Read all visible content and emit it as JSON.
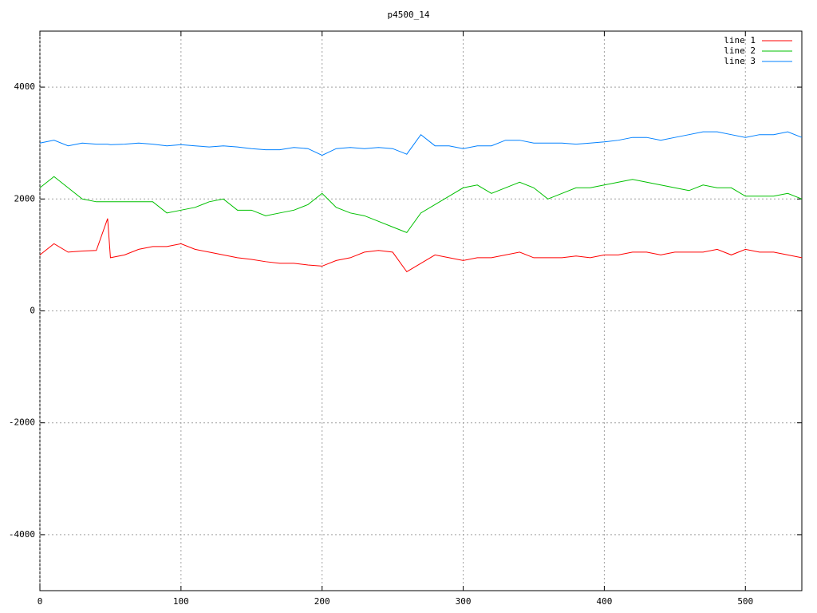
{
  "chart_data": {
    "type": "line",
    "title": "p4500_14",
    "x": [
      0,
      10,
      20,
      30,
      40,
      48,
      50,
      60,
      70,
      80,
      90,
      100,
      110,
      120,
      130,
      140,
      150,
      160,
      170,
      180,
      190,
      200,
      210,
      220,
      230,
      240,
      250,
      260,
      270,
      280,
      290,
      300,
      310,
      320,
      330,
      340,
      350,
      360,
      370,
      380,
      390,
      400,
      410,
      420,
      430,
      440,
      450,
      460,
      470,
      480,
      490,
      500,
      510,
      520,
      530,
      540
    ],
    "series": [
      {
        "name": "line 1",
        "color": "#ff0000",
        "values": [
          1000,
          1200,
          1050,
          1070,
          1080,
          1650,
          950,
          1000,
          1100,
          1150,
          1150,
          1200,
          1100,
          1050,
          1000,
          950,
          920,
          880,
          850,
          850,
          820,
          800,
          900,
          950,
          1050,
          1080,
          1050,
          700,
          850,
          1000,
          950,
          900,
          950,
          950,
          1000,
          1050,
          950,
          950,
          950,
          980,
          950,
          1000,
          1000,
          1050,
          1050,
          1000,
          1050,
          1050,
          1050,
          1100,
          1000,
          1100,
          1050,
          1050,
          1000,
          950
        ]
      },
      {
        "name": "line 2",
        "color": "#00c000",
        "values": [
          2200,
          2400,
          2200,
          2000,
          1950,
          1950,
          1950,
          1950,
          1950,
          1950,
          1750,
          1800,
          1850,
          1950,
          2000,
          1800,
          1800,
          1700,
          1750,
          1800,
          1900,
          2100,
          1850,
          1750,
          1700,
          1600,
          1500,
          1400,
          1750,
          1900,
          2050,
          2200,
          2250,
          2100,
          2200,
          2300,
          2200,
          2000,
          2100,
          2200,
          2200,
          2250,
          2300,
          2350,
          2300,
          2250,
          2200,
          2150,
          2250,
          2200,
          2200,
          2050,
          2050,
          2050,
          2100,
          2000
        ]
      },
      {
        "name": "line 3",
        "color": "#0080ff",
        "values": [
          3000,
          3050,
          2950,
          3000,
          2980,
          2980,
          2970,
          2980,
          3000,
          2980,
          2950,
          2970,
          2950,
          2930,
          2950,
          2930,
          2900,
          2880,
          2880,
          2920,
          2900,
          2780,
          2900,
          2920,
          2900,
          2920,
          2900,
          2800,
          3150,
          2950,
          2950,
          2900,
          2950,
          2950,
          3050,
          3050,
          3000,
          3000,
          3000,
          2980,
          3000,
          3020,
          3050,
          3100,
          3100,
          3050,
          3100,
          3150,
          3200,
          3200,
          3150,
          3100,
          3150,
          3150,
          3200,
          3100
        ]
      }
    ],
    "xlim": [
      0,
      540
    ],
    "ylim": [
      -5000,
      5000
    ],
    "xticks": [
      0,
      100,
      200,
      300,
      400,
      500
    ],
    "yticks": [
      -4000,
      -2000,
      0,
      2000,
      4000
    ],
    "grid": true,
    "legend": "top-right"
  }
}
